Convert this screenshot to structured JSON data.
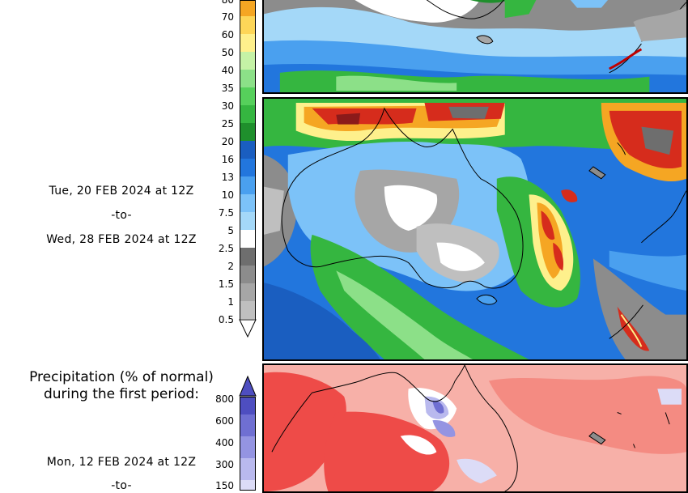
{
  "colors": {
    "precip_scale": [
      "#bfbfbf",
      "#a6a6a6",
      "#8c8c8c",
      "#6e6e6e",
      "#a4d8f8",
      "#7cc2f8",
      "#4aa0ef",
      "#2276dd",
      "#1a5ec0",
      "#1f8f2c",
      "#35b640",
      "#56d05b",
      "#8ce088",
      "#c5f2a6",
      "#fef08c",
      "#fdd658",
      "#f5a623"
    ],
    "anomaly_scale": [
      "#f8f8ff",
      "#dcdcf7",
      "#b9b9ee",
      "#9494e2",
      "#6f6fd2",
      "#4e4ec0"
    ]
  },
  "colorbar_top": {
    "ticks": [
      "80",
      "70",
      "60",
      "50",
      "40",
      "35",
      "30",
      "25",
      "20",
      "16",
      "13",
      "10",
      "7.5",
      "5",
      "2.5",
      "2",
      "1.5",
      "1",
      "0.5"
    ]
  },
  "period_top": {
    "line1": "Tue, 20 FEB 2024 at 12Z",
    "line2": "-to-",
    "line3": "Wed, 28 FEB 2024 at 12Z"
  },
  "anomaly_section": {
    "title_line1": "Precipitation (% of normal)",
    "title_line2": "during the first period:",
    "ticks": [
      "800",
      "600",
      "400",
      "300",
      "150"
    ],
    "period_line1": "Mon, 12 FEB 2024 at 12Z",
    "period_line2": "-to-"
  },
  "maps": {
    "top_partial": {
      "region": "Australia and New Zealand",
      "field": "precipitation"
    },
    "middle": {
      "region": "Australia and New Zealand",
      "field": "precipitation"
    },
    "bottom": {
      "region": "Australia and New Zealand",
      "field": "precipitation percent of normal"
    }
  }
}
